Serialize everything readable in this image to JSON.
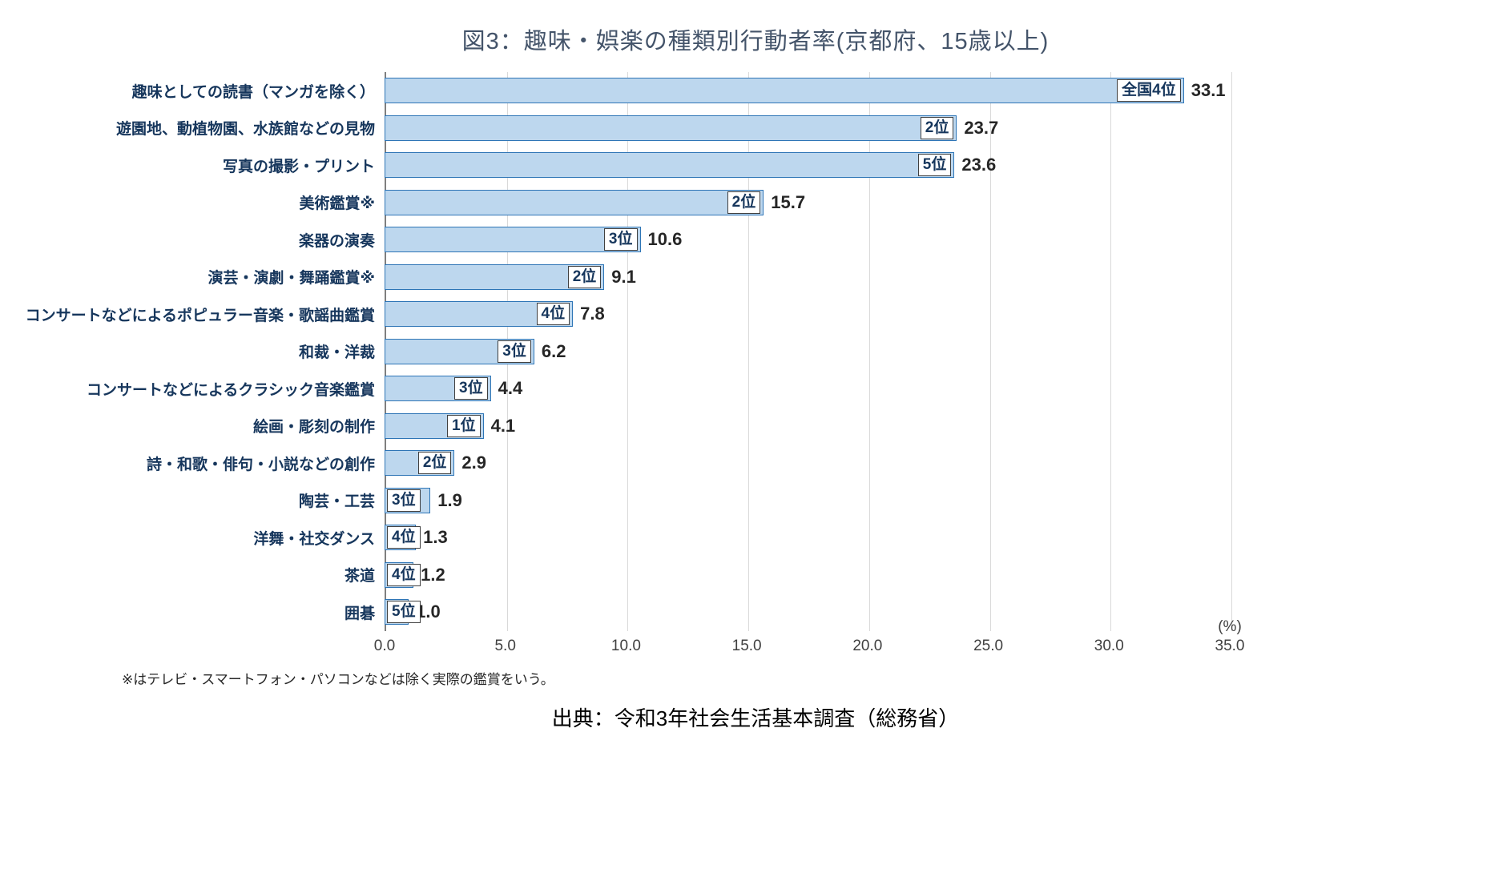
{
  "title": "図3：趣味・娯楽の種類別行動者率(京都府、15歳以上)",
  "percent_label": "(%)",
  "footnote": "※はテレビ・スマートフォン・パソコンなどは除く実際の鑑賞をいう。",
  "source": "出典：令和3年社会生活基本調査（総務省）",
  "chart_data": {
    "type": "bar",
    "orientation": "horizontal",
    "title": "図3：趣味・娯楽の種類別行動者率(京都府、15歳以上)",
    "categories": [
      "趣味としての読書（マンガを除く）",
      "遊園地、動植物園、水族館などの見物",
      "写真の撮影・プリント",
      "美術鑑賞※",
      "楽器の演奏",
      "演芸・演劇・舞踊鑑賞※",
      "コンサートなどによるポピュラー音楽・歌謡曲鑑賞",
      "和裁・洋裁",
      "コンサートなどによるクラシック音楽鑑賞",
      "絵画・彫刻の制作",
      "詩・和歌・俳句・小説などの創作",
      "陶芸・工芸",
      "洋舞・社交ダンス",
      "茶道",
      "囲碁"
    ],
    "values": [
      33.1,
      23.7,
      23.6,
      15.7,
      10.6,
      9.1,
      7.8,
      6.2,
      4.4,
      4.1,
      2.9,
      1.9,
      1.3,
      1.2,
      1.0
    ],
    "rank_labels": [
      "全国4位",
      "2位",
      "5位",
      "2位",
      "3位",
      "2位",
      "4位",
      "3位",
      "3位",
      "1位",
      "2位",
      "3位",
      "4位",
      "4位",
      "5位"
    ],
    "xlim": [
      0,
      35
    ],
    "x_ticks": [
      "0.0",
      "5.0",
      "10.0",
      "15.0",
      "20.0",
      "25.0",
      "30.0",
      "35.0"
    ],
    "xlabel_unit": "(%)",
    "grid": true,
    "legend": false,
    "bar_color": "#BDD7EE",
    "bar_border_color": "#2E75B6",
    "gridline_color": "#d9d9d9",
    "axis_line_color": "#7f7f7f",
    "title_color": "#44546A"
  }
}
